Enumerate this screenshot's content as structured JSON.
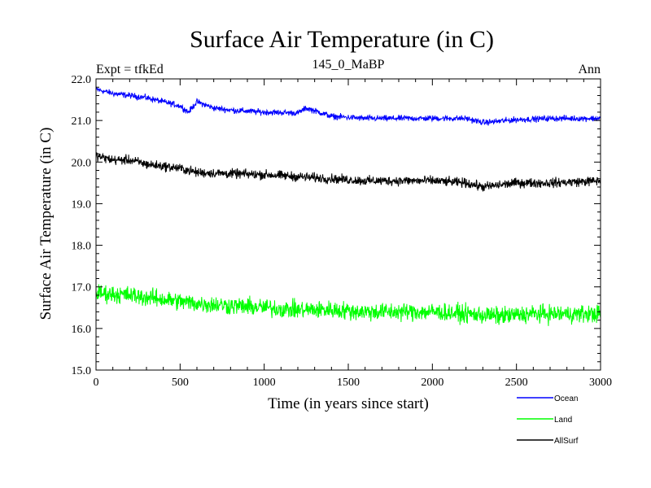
{
  "chart_data": {
    "type": "line",
    "title": "Surface Air Temperature (in C)",
    "subtitle": "145_0_MaBP",
    "left_label": "Expt = tfkEd",
    "right_label": "Ann",
    "xlabel": "Time (in years since start)",
    "ylabel": "Surface Air Temperature (in C)",
    "xlim": [
      0,
      3000
    ],
    "ylim": [
      15.0,
      22.0
    ],
    "x_ticks": [
      0,
      500,
      1000,
      1500,
      2000,
      2500,
      3000
    ],
    "x_tick_labels": [
      "0",
      "500",
      "1000",
      "1500",
      "2000",
      "2500",
      "3000"
    ],
    "y_ticks": [
      15.0,
      16.0,
      17.0,
      18.0,
      19.0,
      20.0,
      21.0,
      22.0
    ],
    "y_tick_labels": [
      "15.0",
      "16.0",
      "17.0",
      "18.0",
      "19.0",
      "20.0",
      "21.0",
      "22.0"
    ],
    "grid": false,
    "legend_position": "bottom-right, below plot",
    "series": [
      {
        "name": "Ocean",
        "color": "#0000ff",
        "noise": 0.05,
        "x": [
          0,
          100,
          200,
          300,
          400,
          500,
          550,
          600,
          700,
          800,
          1000,
          1200,
          1250,
          1400,
          1600,
          1800,
          2000,
          2200,
          2300,
          2500,
          2700,
          3000
        ],
        "y": [
          21.75,
          21.65,
          21.6,
          21.55,
          21.45,
          21.35,
          21.2,
          21.45,
          21.3,
          21.25,
          21.2,
          21.18,
          21.3,
          21.1,
          21.05,
          21.05,
          21.05,
          21.05,
          20.95,
          21.02,
          21.05,
          21.05
        ]
      },
      {
        "name": "AllSurf",
        "color": "#000000",
        "noise": 0.08,
        "x": [
          0,
          100,
          200,
          300,
          400,
          500,
          600,
          800,
          1000,
          1200,
          1400,
          1600,
          1800,
          2000,
          2200,
          2300,
          2500,
          2700,
          3000
        ],
        "y": [
          20.15,
          20.05,
          20.05,
          19.95,
          19.9,
          19.85,
          19.75,
          19.72,
          19.7,
          19.65,
          19.6,
          19.55,
          19.55,
          19.55,
          19.5,
          19.4,
          19.5,
          19.5,
          19.55
        ]
      },
      {
        "name": "Land",
        "color": "#00ff00",
        "noise": 0.15,
        "x": [
          0,
          200,
          400,
          600,
          800,
          1000,
          1200,
          1400,
          1600,
          1800,
          2000,
          2200,
          2400,
          2600,
          2800,
          3000
        ],
        "y": [
          16.85,
          16.8,
          16.7,
          16.6,
          16.55,
          16.5,
          16.45,
          16.45,
          16.4,
          16.4,
          16.4,
          16.35,
          16.3,
          16.35,
          16.35,
          16.35
        ]
      }
    ]
  }
}
